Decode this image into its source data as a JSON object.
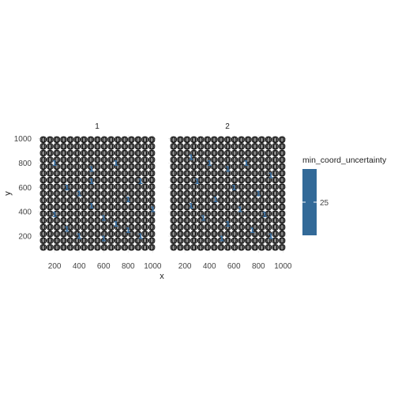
{
  "chart_data": {
    "type": "heatmap",
    "xlabel": "x",
    "ylabel": "y",
    "xlim": [
      100,
      1000
    ],
    "ylim": [
      100,
      1000
    ],
    "x_ticks": [
      200,
      400,
      600,
      800,
      1000
    ],
    "y_ticks": [
      200,
      400,
      600,
      800,
      1000
    ],
    "grid": true,
    "grid_cols": 17,
    "grid_rows": 17,
    "cell_fill": "#8a8a8a",
    "cell_outline": "#1a1a1a",
    "label_color": "#000000",
    "highlight_color": "#3a70a2",
    "panels": [
      {
        "strip_label": "1",
        "highlight_label": "1",
        "highlighted_x": [
          200,
          500,
          700,
          900,
          300,
          400,
          800,
          500,
          1000,
          200,
          600,
          700,
          300,
          800,
          400,
          600,
          900,
          500
        ],
        "highlighted_y": [
          800,
          750,
          800,
          650,
          600,
          550,
          500,
          450,
          420,
          380,
          350,
          300,
          260,
          250,
          200,
          180,
          200,
          650
        ]
      },
      {
        "strip_label": "2",
        "highlight_label": "1",
        "highlighted_x": [
          250,
          400,
          550,
          700,
          900,
          300,
          600,
          800,
          450,
          250,
          650,
          850,
          350,
          550,
          750,
          900,
          500
        ],
        "highlighted_y": [
          850,
          800,
          750,
          800,
          700,
          650,
          600,
          550,
          500,
          450,
          420,
          380,
          350,
          300,
          250,
          200,
          180
        ]
      }
    ],
    "legend": {
      "title": "min_coord_uncertainty",
      "value": "25",
      "color": "#336a98",
      "placement": "right"
    }
  }
}
